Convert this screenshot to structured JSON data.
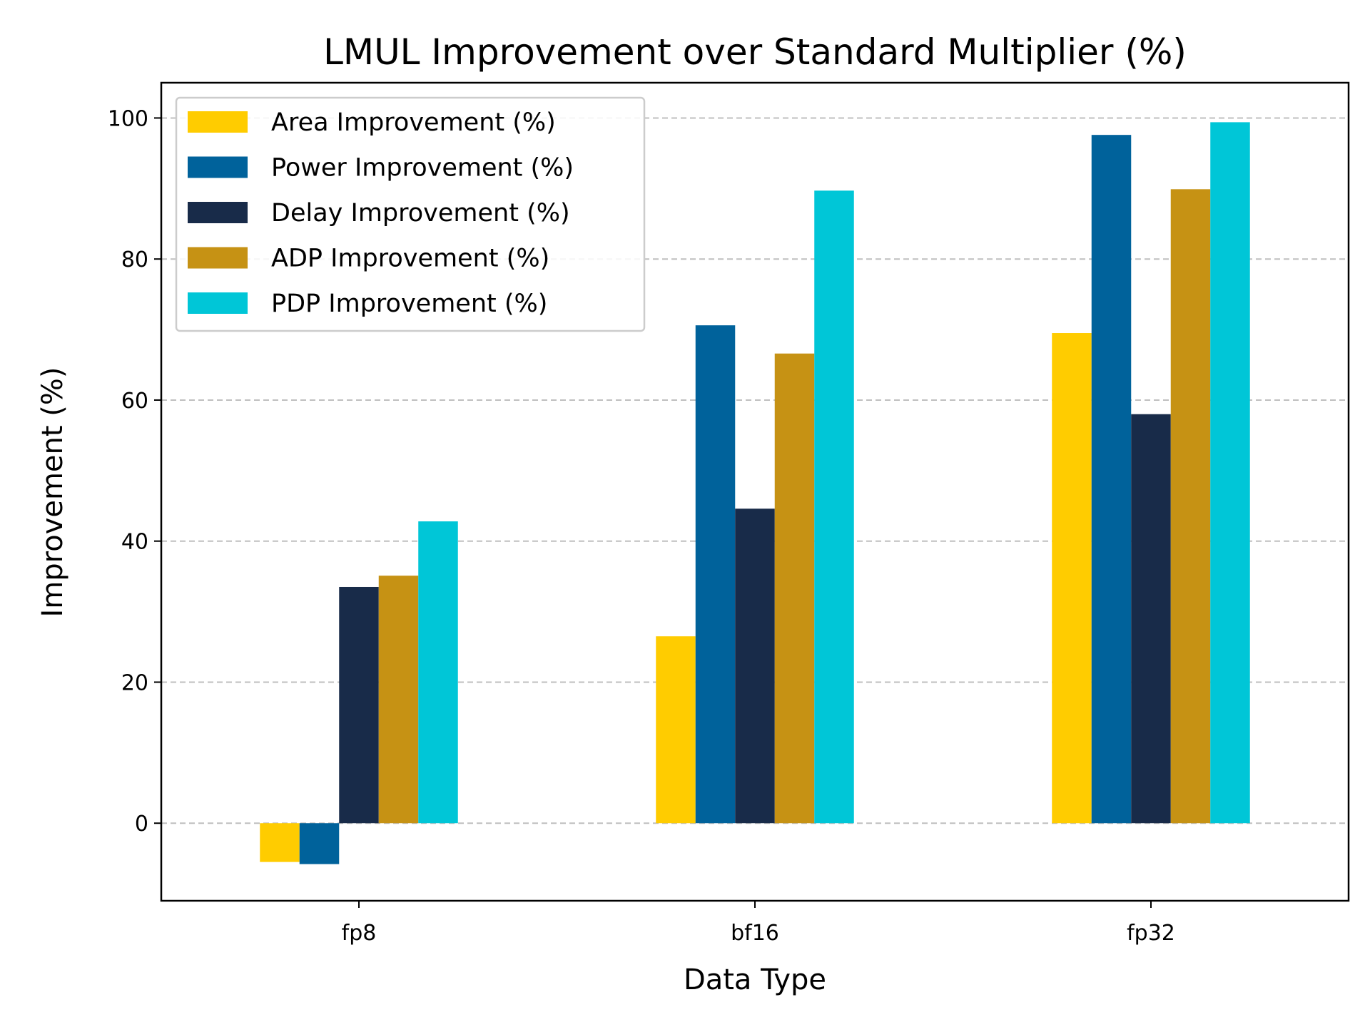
{
  "chart_data": {
    "type": "bar",
    "title": "LMUL Improvement over Standard Multiplier (%)",
    "xlabel": "Data Type",
    "ylabel": "Improvement (%)",
    "categories": [
      "fp8",
      "bf16",
      "fp32"
    ],
    "ylim": [
      -11,
      105
    ],
    "yticks": [
      0,
      20,
      40,
      60,
      80,
      100
    ],
    "grid": "y-dashed",
    "legend_position": "top-left",
    "series": [
      {
        "name": "Area Improvement (%)",
        "color": "#ffcc00",
        "values": [
          -5.5,
          26.5,
          69.5
        ]
      },
      {
        "name": "Power Improvement (%)",
        "color": "#00629b",
        "values": [
          -5.8,
          70.6,
          97.6
        ]
      },
      {
        "name": "Delay Improvement (%)",
        "color": "#182b49",
        "values": [
          33.5,
          44.6,
          58.0
        ]
      },
      {
        "name": "ADP Improvement (%)",
        "color": "#c69214",
        "values": [
          35.1,
          66.6,
          89.9
        ]
      },
      {
        "name": "PDP Improvement (%)",
        "color": "#00c6d7",
        "values": [
          42.8,
          89.7,
          99.4
        ]
      }
    ]
  }
}
